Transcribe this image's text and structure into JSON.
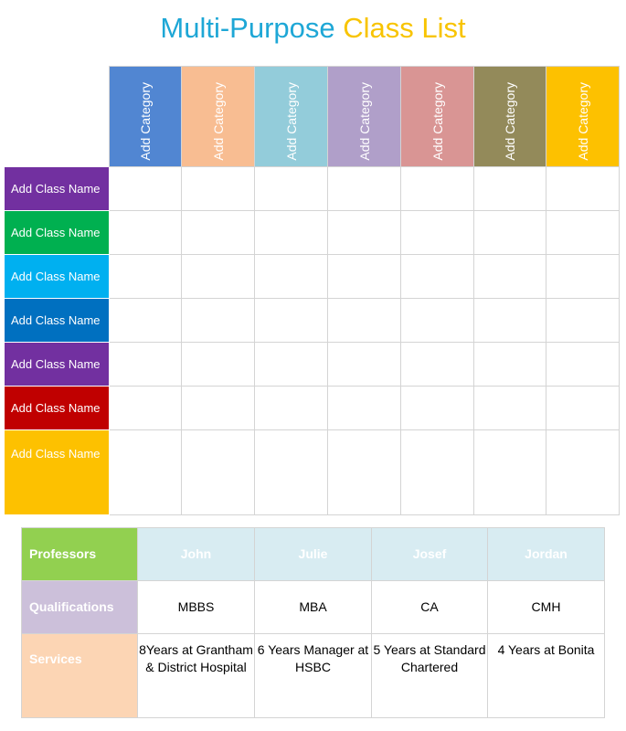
{
  "title": {
    "part1": "Multi-Purpose ",
    "part2": "Class List"
  },
  "categories": [
    {
      "label": "Add Category",
      "color": "#5186d2"
    },
    {
      "label": "Add Category",
      "color": "#f8bd92"
    },
    {
      "label": "Add Category",
      "color": "#93ccda"
    },
    {
      "label": "Add Category",
      "color": "#b09fc9"
    },
    {
      "label": "Add Category",
      "color": "#d99594"
    },
    {
      "label": "Add Category",
      "color": "#938a5a"
    },
    {
      "label": "Add Category",
      "color": "#fdc100"
    }
  ],
  "classes": [
    {
      "label": "Add Class Name",
      "color": "#7230a0"
    },
    {
      "label": "Add Class Name",
      "color": "#00b050"
    },
    {
      "label": "Add Class Name",
      "color": "#00b0f0"
    },
    {
      "label": "Add Class Name",
      "color": "#0070c0"
    },
    {
      "label": "Add Class Name",
      "color": "#7230a0"
    },
    {
      "label": "Add Class Name",
      "color": "#c00000"
    },
    {
      "label": "Add Class Name",
      "color": "#fdc100"
    }
  ],
  "professors": {
    "row_labels": {
      "professors": "Professors",
      "qualifications": "Qualifications",
      "services": "Services"
    },
    "label_colors": {
      "professors": "#92d050",
      "qualifications": "#ccc0da",
      "services": "#fcd5b4"
    },
    "people": [
      {
        "name": "John",
        "qualification": "MBBS",
        "service": "8Years at Grantham & District Hospital"
      },
      {
        "name": "Julie",
        "qualification": "MBA",
        "service": "6 Years Manager at HSBC"
      },
      {
        "name": "Josef",
        "qualification": "CA",
        "service": "5 Years at Standard Chartered"
      },
      {
        "name": "Jordan",
        "qualification": "CMH",
        "service": "4 Years at Bonita"
      }
    ]
  }
}
